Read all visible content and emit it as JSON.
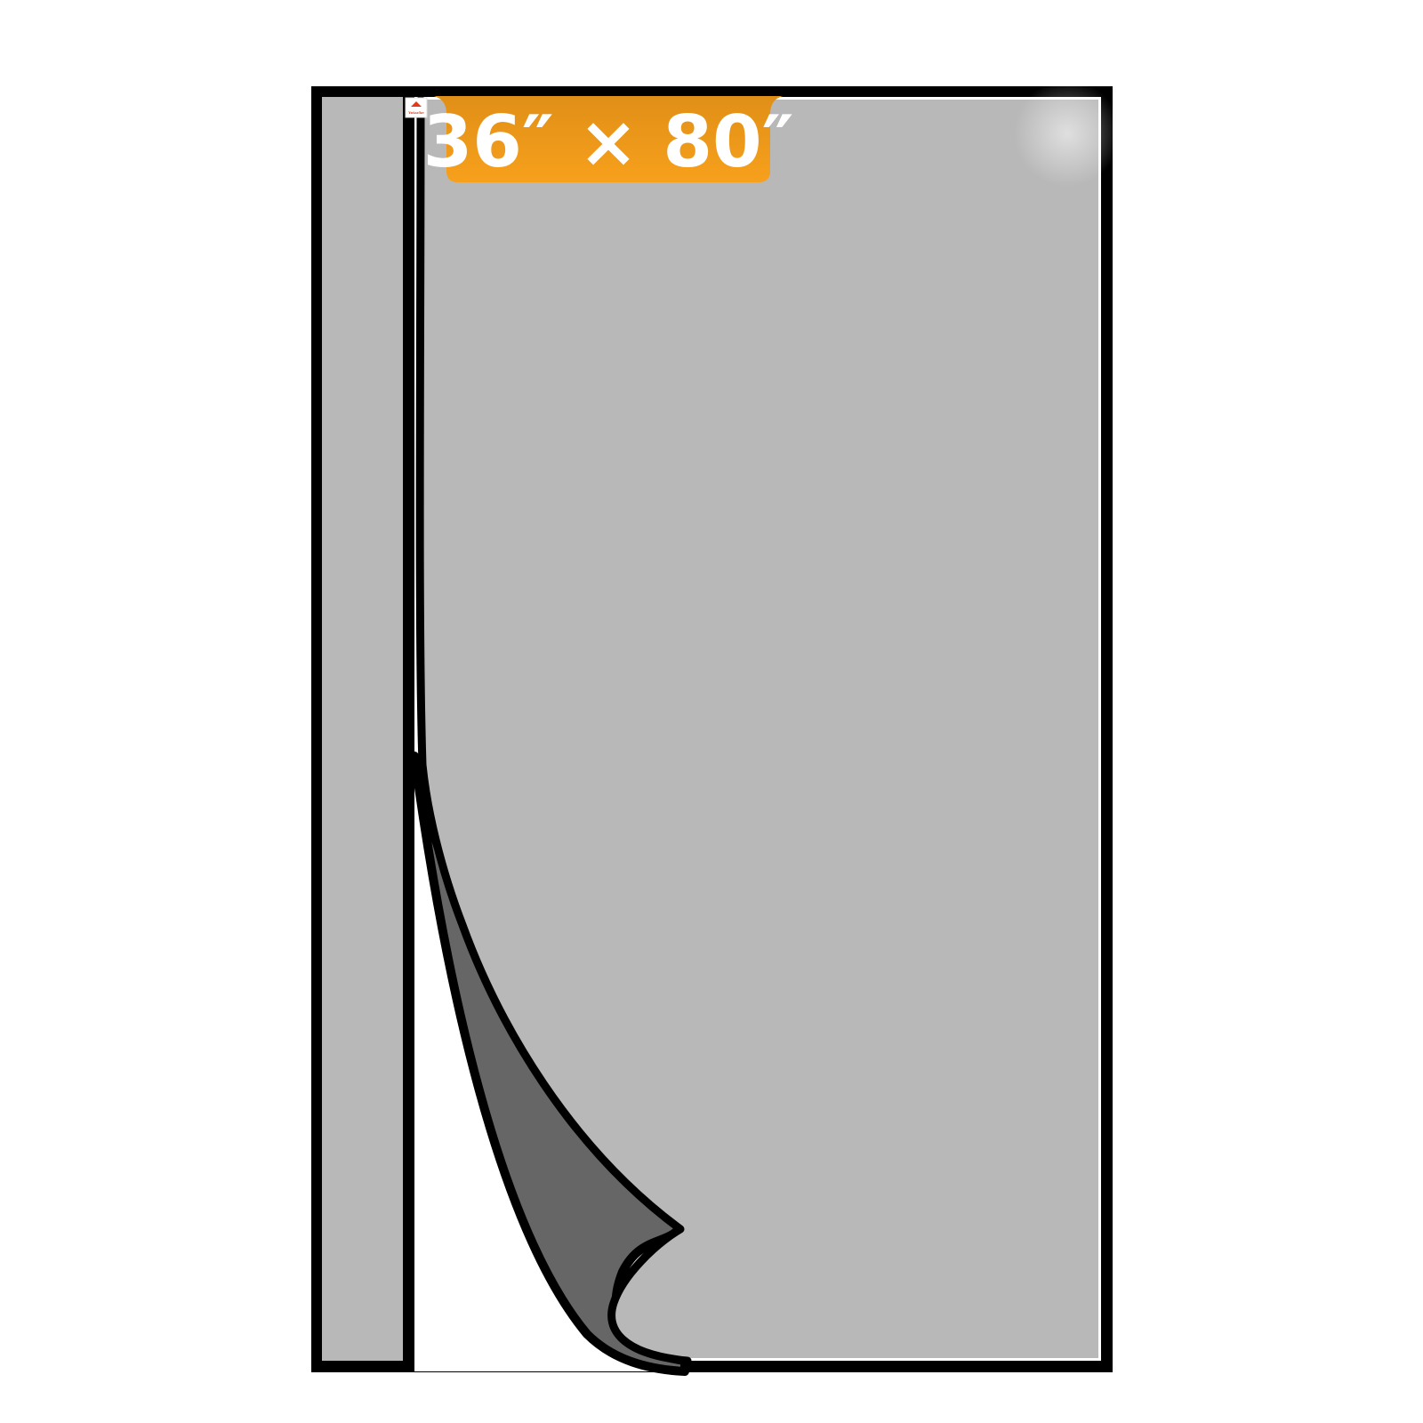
{
  "product": {
    "size_label": "36″ × 80″",
    "brand_tag_text": "Yotache"
  },
  "colors": {
    "background": "#ffffff",
    "mesh": "#b8b8b8",
    "mesh_underside": "#666666",
    "frame": "#000000",
    "badge_top": "#e08f17",
    "badge_bottom": "#f7a01c",
    "badge_text": "#ffffff",
    "brand_tag": "#e53a1a"
  }
}
